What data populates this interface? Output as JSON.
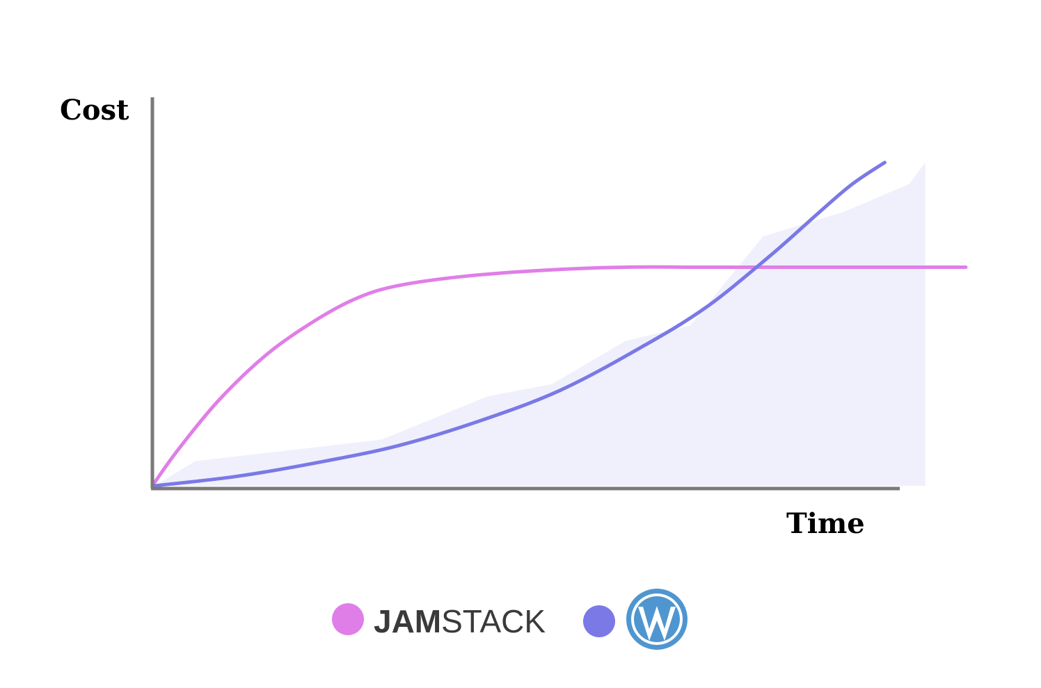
{
  "chart_data": {
    "type": "line",
    "title": "",
    "xlabel": "Time",
    "ylabel": "Cost",
    "xlim": [
      0,
      100
    ],
    "ylim": [
      0,
      100
    ],
    "grid": false,
    "legend_position": "bottom-center",
    "ticks": "none",
    "series": [
      {
        "name": "JAMSTACK",
        "color": "#e07ee8",
        "x": [
          0,
          3,
          8,
          14,
          20,
          25,
          30,
          38,
          48,
          58,
          68,
          78,
          88,
          100
        ],
        "y": [
          1,
          12,
          28,
          43,
          54,
          61,
          65,
          68,
          70,
          71,
          71,
          71,
          71,
          71
        ]
      },
      {
        "color": "#7a79e6",
        "x": [
          0,
          10,
          20,
          30,
          40,
          50,
          60,
          68,
          76,
          82,
          86,
          90
        ],
        "y": [
          0,
          3,
          7.5,
          13,
          21,
          31,
          45,
          58,
          75,
          89,
          98,
          105
        ],
        "band": {
          "color": "#f0f0fc",
          "x": [
            0,
            5,
            28,
            41,
            49,
            58,
            66,
            75,
            85,
            93,
            95
          ],
          "y_upper": [
            0,
            8,
            15,
            29,
            33,
            47,
            52,
            81,
            89,
            98,
            105
          ]
        }
      }
    ],
    "legend": [
      {
        "label": "JAMSTACK",
        "color": "#e07ee8",
        "icon": "jamstack-logo",
        "label_bold_part": "JAM",
        "label_thin_part": "STACK"
      },
      {
        "color": "#7a79e6",
        "icon": "wordpress-logo"
      }
    ]
  },
  "colors": {
    "axis": "#7a7a7a",
    "wordpress_blue": "#4f96d0"
  }
}
